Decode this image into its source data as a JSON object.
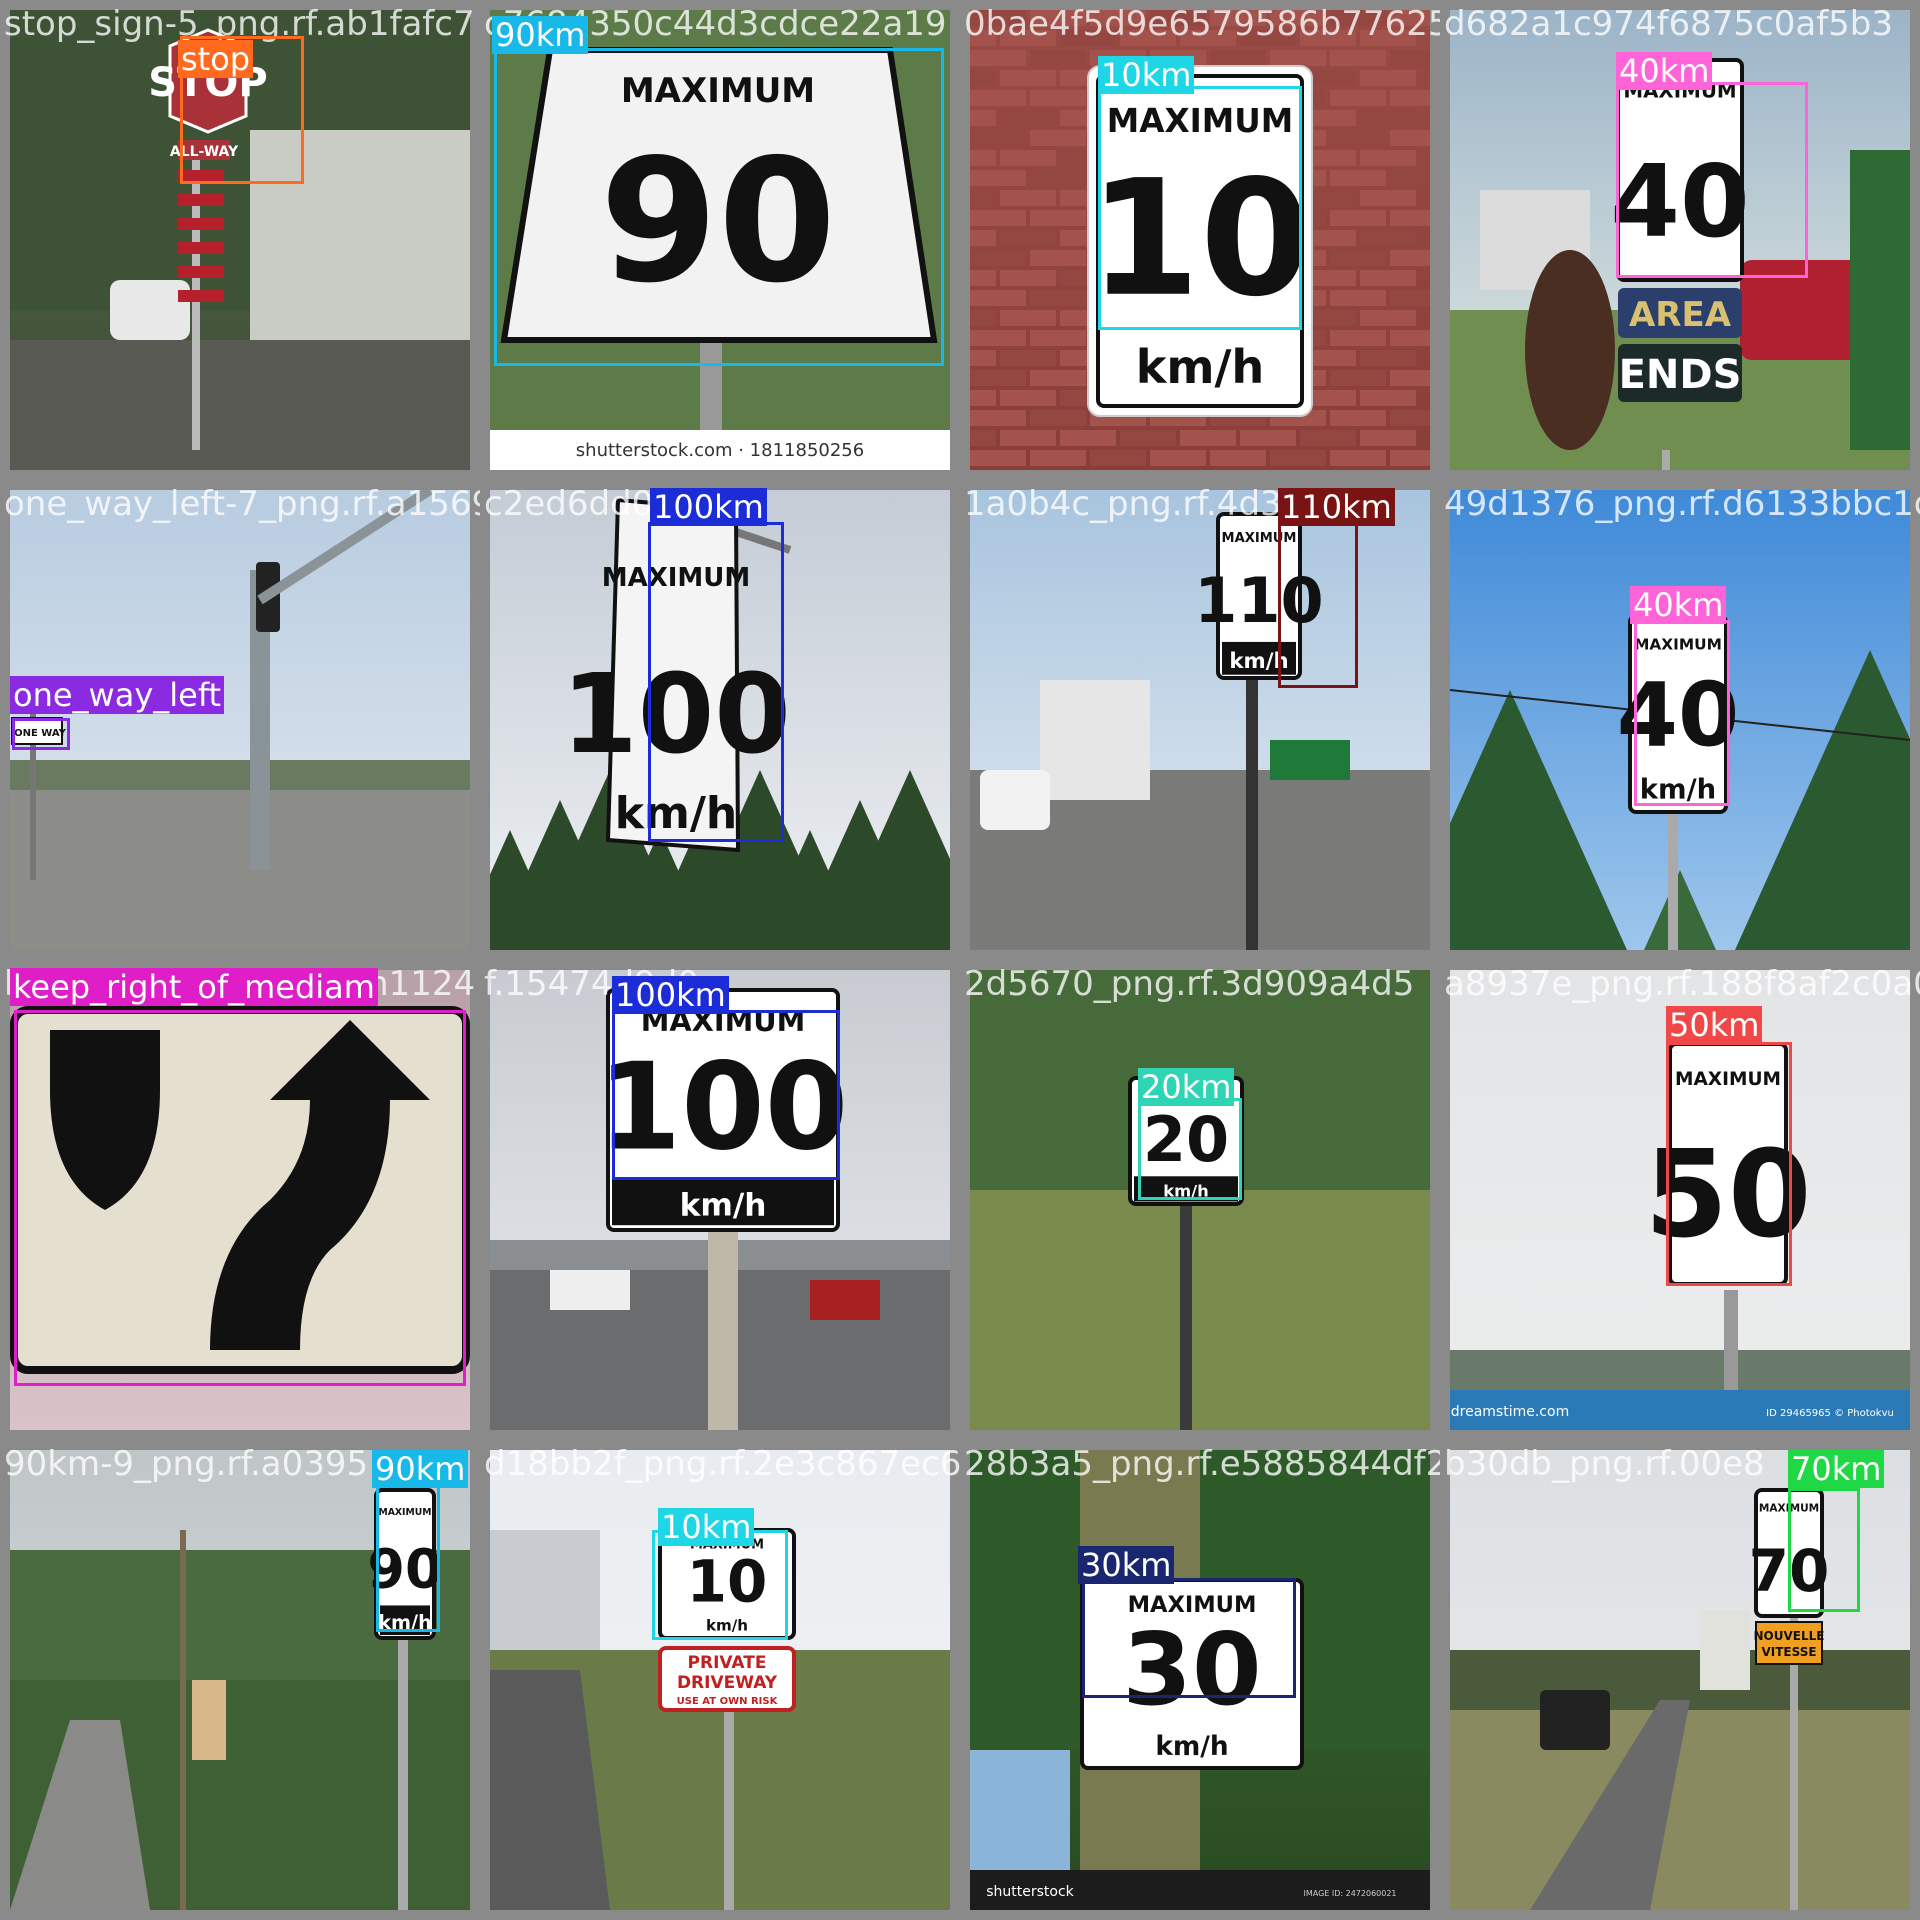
{
  "tiles": [
    {
      "filename": "stop_sign-5_png.rf.ab1fafc7",
      "scene": "stop",
      "scene_text": [
        "STOP",
        "ALL-WAY"
      ],
      "detections": [
        {
          "label": "stop",
          "color": "#ff6a1f"
        }
      ]
    },
    {
      "filename": "c7684350c44d3cdce22a19",
      "scene": "max90",
      "scene_text": [
        "MAXIMUM",
        "90",
        "shutterstock.com · 1811850256"
      ],
      "detections": [
        {
          "label": "90km",
          "color": "#18b8e8"
        }
      ]
    },
    {
      "filename": "0bae4f5d9e6579586b77625",
      "scene": "max10brick",
      "scene_text": [
        "MAXIMUM",
        "10",
        "km/h"
      ],
      "detections": [
        {
          "label": "10km",
          "color": "#1fd6e6"
        }
      ]
    },
    {
      "filename": "d682a1c974f6875c0af5b3",
      "scene": "max40area",
      "scene_text": [
        "MAXIMUM",
        "40",
        "AREA",
        "ENDS"
      ],
      "detections": [
        {
          "label": "40km",
          "color": "#ff63d8"
        }
      ]
    },
    {
      "filename": "one_way_left-7_png.rf.a1569",
      "scene": "oneway",
      "scene_text": [
        "ONE WAY"
      ],
      "detections": [
        {
          "label": "one_way_left",
          "color": "#8a2be2"
        }
      ]
    },
    {
      "filename": "c2ed6dd021",
      "scene": "max100tilt",
      "scene_text": [
        "MAXIMUM",
        "100",
        "km/h"
      ],
      "detections": [
        {
          "label": "100km",
          "color": "#1c2dd8"
        }
      ]
    },
    {
      "filename": "1a0b4c_png.rf.4d3",
      "scene": "max110",
      "scene_text": [
        "MAXIMUM",
        "110",
        "km/h"
      ],
      "detections": [
        {
          "label": "110km",
          "color": "#7a1414"
        }
      ]
    },
    {
      "filename": "49d1376_png.rf.d6133bbc1d4",
      "scene": "max40sky",
      "scene_text": [
        "MAXIMUM",
        "40",
        "km/h"
      ],
      "detections": [
        {
          "label": "40km",
          "color": "#ff63d8"
        }
      ]
    },
    {
      "filename": "keep_right_of_mediam1124",
      "scene": "keepright",
      "scene_text": [],
      "detections": [
        {
          "label": "keep_right_of_mediam",
          "color": "#e01ec8"
        }
      ]
    },
    {
      "filename": "f.15474d9d0c",
      "scene": "max100hwy",
      "scene_text": [
        "MAXIMUM",
        "100",
        "km/h"
      ],
      "detections": [
        {
          "label": "100km",
          "color": "#1c2dd8"
        }
      ]
    },
    {
      "filename": "2d5670_png.rf.3d909a4d5",
      "scene": "max20",
      "scene_text": [
        "MAXIMUM",
        "20",
        "km/h"
      ],
      "detections": [
        {
          "label": "20km",
          "color": "#2ed4b4"
        }
      ]
    },
    {
      "filename": "a8937e_png.rf.188f8af2c0a0dd",
      "scene": "max50",
      "scene_text": [
        "MAXIMUM",
        "50",
        "dreamstime.com",
        "ID 29465965 © Photokvu"
      ],
      "detections": [
        {
          "label": "50km",
          "color": "#f04848"
        }
      ]
    },
    {
      "filename": "90km-9_png.rf.a0395",
      "scene": "max90road",
      "scene_text": [
        "MAXIMUM",
        "90",
        "km/h"
      ],
      "detections": [
        {
          "label": "90km",
          "color": "#18b8e8"
        }
      ]
    },
    {
      "filename": "d18bb2f_png.rf.2e3c867ec62",
      "scene": "max10driveway",
      "scene_text": [
        "MAXIMUM",
        "10",
        "km/h",
        "PRIVATE",
        "DRIVEWAY",
        "USE AT OWN RISK"
      ],
      "detections": [
        {
          "label": "10km",
          "color": "#1fd6e6"
        }
      ]
    },
    {
      "filename": "28b3a5_png.rf.e5885844df2a9",
      "scene": "max30",
      "scene_text": [
        "MAXIMUM",
        "30",
        "km/h",
        "shutterstock",
        "IMAGE ID: 2472060021"
      ],
      "detections": [
        {
          "label": "30km",
          "color": "#1a2670"
        }
      ]
    },
    {
      "filename": "b30db_png.rf.00e8",
      "scene": "max70",
      "scene_text": [
        "MAXIMUM",
        "70",
        "NOUVELLE",
        "VITESSE"
      ],
      "detections": [
        {
          "label": "70km",
          "color": "#20d845"
        }
      ]
    }
  ]
}
